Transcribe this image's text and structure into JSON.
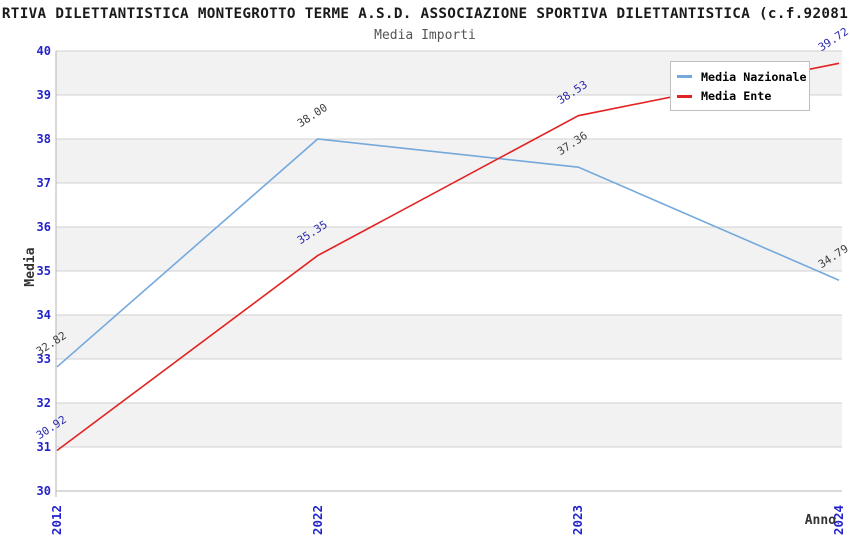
{
  "chart_data": {
    "type": "line",
    "title": "RTIVA DILETTANTISTICA MONTEGROTTO TERME A.S.D. ASSOCIAZIONE SPORTIVA DILETTANTISTICA (c.f.92081",
    "subtitle": "Media Importi",
    "xlabel": "Anno",
    "ylabel": "Media",
    "categories": [
      "2012",
      "2022",
      "2023",
      "2024"
    ],
    "series": [
      {
        "name": "Media Nazionale",
        "color": "#75A9DC",
        "label_color": "#3F3F3F",
        "values": [
          32.82,
          38.0,
          37.36,
          34.79
        ]
      },
      {
        "name": "Media Ente",
        "color": "#E32222",
        "label_color": "#2A2AAE",
        "values": [
          30.92,
          35.35,
          38.53,
          39.72
        ]
      }
    ],
    "ylim": [
      30,
      40
    ],
    "yticks": [
      40,
      39,
      38,
      37,
      36,
      35,
      34,
      33,
      32,
      31,
      30
    ],
    "grid": true,
    "band_color": "#F2F2F2",
    "gridline_color": "#D0D0D0",
    "spine_color": "#B5B5B5",
    "tick_color": "#2323CC",
    "legend_position": "top-right",
    "data_label_format": "0.00"
  }
}
